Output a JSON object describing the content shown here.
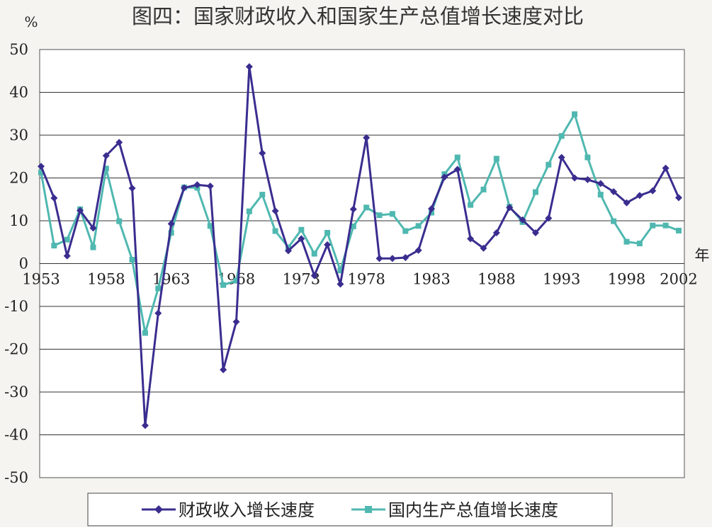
{
  "chart_data": {
    "type": "line",
    "title": "图四：国家财政收入和国家生产总值增长速度对比",
    "ylabel": "%",
    "xlabel": "年",
    "ylim": [
      -50,
      50
    ],
    "yticks": [
      50,
      40,
      30,
      20,
      10,
      0,
      -10,
      -20,
      -30,
      -40,
      -50
    ],
    "ytick_labels": [
      "50",
      "40",
      "30",
      "20",
      "10",
      "0",
      "-10",
      "-20",
      "-30",
      "-40",
      "-50"
    ],
    "xlim": [
      1953,
      2002
    ],
    "xtick_labels": [
      "1953",
      "1958",
      "1963",
      "1968",
      "1973",
      "1978",
      "1983",
      "1988",
      "1993",
      "1998",
      "2002"
    ],
    "grid": true,
    "legend_position": "bottom",
    "x": [
      1953,
      1954,
      1955,
      1956,
      1957,
      1958,
      1959,
      1960,
      1961,
      1962,
      1963,
      1964,
      1965,
      1966,
      1967,
      1968,
      1969,
      1970,
      1971,
      1972,
      1973,
      1974,
      1975,
      1976,
      1977,
      1978,
      1979,
      1980,
      1981,
      1982,
      1983,
      1984,
      1985,
      1986,
      1987,
      1988,
      1989,
      1990,
      1991,
      1992,
      1993,
      1994,
      1995,
      1996,
      1997,
      1998,
      1999,
      2000,
      2001,
      2002
    ],
    "series": [
      {
        "name": "财政收入增长速度",
        "color": "#3a2d8f",
        "marker": "diamond",
        "values": [
          22.7,
          15.3,
          1.8,
          12.4,
          8.3,
          25.2,
          28.3,
          17.6,
          -37.8,
          -11.6,
          9.3,
          17.7,
          18.4,
          18.1,
          -24.8,
          -13.6,
          46.0,
          25.8,
          12.3,
          3.0,
          5.8,
          -2.8,
          4.4,
          -4.8,
          12.7,
          29.4,
          1.2,
          1.2,
          1.4,
          3.1,
          12.8,
          20.2,
          22.0,
          5.8,
          3.6,
          7.2,
          13.1,
          10.2,
          7.2,
          10.6,
          24.8,
          20.0,
          19.6,
          18.7,
          16.8,
          14.2,
          15.9,
          17.0,
          22.3,
          15.4
        ]
      },
      {
        "name": "国内生产总值增长速度",
        "color": "#4fb8b0",
        "marker": "square",
        "values": [
          21.3,
          4.2,
          5.6,
          12.7,
          3.8,
          22.2,
          9.9,
          0.9,
          -16.2,
          -5.8,
          7.2,
          17.8,
          17.7,
          8.8,
          -5.0,
          -4.0,
          12.2,
          16.1,
          7.6,
          3.8,
          7.9,
          2.3,
          7.2,
          -1.6,
          8.7,
          13.1,
          11.3,
          11.6,
          7.6,
          8.8,
          11.9,
          20.9,
          24.8,
          13.7,
          17.3,
          24.5,
          13.3,
          9.7,
          16.7,
          23.1,
          29.8,
          34.9,
          24.8,
          16.1,
          9.9,
          5.1,
          4.7,
          8.9,
          8.9,
          7.7
        ]
      }
    ]
  }
}
